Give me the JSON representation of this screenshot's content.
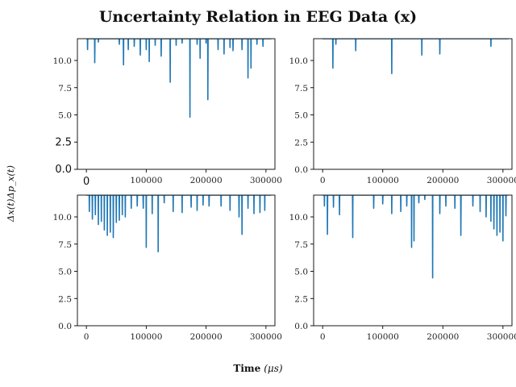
{
  "figure": {
    "title": "Uncertainty Relation in EEG Data (x)",
    "xlabel_bold": "Time",
    "xlabel_unit": "(μs)",
    "ylabel": "Δx(t)Δp_x(t)",
    "line_color": "#1f77b4"
  },
  "chart_data": [
    {
      "type": "line",
      "panel": "top-left",
      "xlim": [
        -15000,
        315000
      ],
      "ylim": [
        0,
        12
      ],
      "xticks": [
        0,
        100000,
        200000,
        300000
      ],
      "yticks": [
        0.0,
        2.5,
        5.0,
        7.5,
        10.0
      ],
      "baseline": 12,
      "dips": [
        [
          2000,
          11.0
        ],
        [
          14000,
          9.8
        ],
        [
          20000,
          11.7
        ],
        [
          55000,
          11.5
        ],
        [
          62000,
          9.6
        ],
        [
          70000,
          11.0
        ],
        [
          80000,
          11.3
        ],
        [
          90000,
          10.5
        ],
        [
          100000,
          11.0
        ],
        [
          105000,
          9.9
        ],
        [
          115000,
          11.4
        ],
        [
          125000,
          10.4
        ],
        [
          140000,
          8.0
        ],
        [
          150000,
          11.4
        ],
        [
          160000,
          11.6
        ],
        [
          173000,
          4.8
        ],
        [
          185000,
          11.5
        ],
        [
          190000,
          10.2
        ],
        [
          200000,
          11.6
        ],
        [
          203000,
          6.4
        ],
        [
          220000,
          11.0
        ],
        [
          230000,
          10.6
        ],
        [
          240000,
          11.2
        ],
        [
          245000,
          10.9
        ],
        [
          260000,
          11.0
        ],
        [
          270000,
          8.4
        ],
        [
          275000,
          9.3
        ],
        [
          285000,
          11.5
        ],
        [
          295000,
          11.3
        ]
      ]
    },
    {
      "type": "line",
      "panel": "top-right",
      "xlim": [
        -15000,
        315000
      ],
      "ylim": [
        0,
        12
      ],
      "xticks": [
        0,
        100000,
        200000,
        300000
      ],
      "yticks": [
        0.0,
        2.5,
        5.0,
        7.5,
        10.0
      ],
      "baseline": 12,
      "dips": [
        [
          17000,
          9.3
        ],
        [
          22000,
          11.5
        ],
        [
          55000,
          10.9
        ],
        [
          115000,
          8.8
        ],
        [
          165000,
          10.5
        ],
        [
          195000,
          10.6
        ],
        [
          280000,
          11.3
        ]
      ]
    },
    {
      "type": "line",
      "panel": "bottom-left",
      "xlim": [
        -15000,
        315000
      ],
      "ylim": [
        0,
        12
      ],
      "xticks": [
        0,
        100000,
        200000,
        300000
      ],
      "yticks": [
        0.0,
        2.5,
        5.0,
        7.5,
        10.0
      ],
      "baseline": 12,
      "dips": [
        [
          5000,
          10.5
        ],
        [
          10000,
          9.8
        ],
        [
          15000,
          10.2
        ],
        [
          20000,
          9.3
        ],
        [
          25000,
          9.6
        ],
        [
          30000,
          8.8
        ],
        [
          35000,
          8.3
        ],
        [
          40000,
          8.6
        ],
        [
          45000,
          8.1
        ],
        [
          50000,
          9.5
        ],
        [
          55000,
          9.7
        ],
        [
          60000,
          10.2
        ],
        [
          65000,
          10.0
        ],
        [
          75000,
          10.8
        ],
        [
          85000,
          11.0
        ],
        [
          95000,
          10.8
        ],
        [
          100000,
          7.2
        ],
        [
          110000,
          10.3
        ],
        [
          120000,
          6.8
        ],
        [
          130000,
          11.3
        ],
        [
          145000,
          10.5
        ],
        [
          160000,
          10.4
        ],
        [
          175000,
          10.9
        ],
        [
          185000,
          10.6
        ],
        [
          195000,
          11.1
        ],
        [
          205000,
          11.0
        ],
        [
          225000,
          11.0
        ],
        [
          240000,
          10.6
        ],
        [
          255000,
          10.0
        ],
        [
          260000,
          8.4
        ],
        [
          270000,
          10.8
        ],
        [
          280000,
          10.3
        ],
        [
          290000,
          10.4
        ],
        [
          298000,
          10.6
        ]
      ]
    },
    {
      "type": "line",
      "panel": "bottom-right",
      "xlim": [
        -15000,
        315000
      ],
      "ylim": [
        0,
        12
      ],
      "xticks": [
        0,
        100000,
        200000,
        300000
      ],
      "yticks": [
        0.0,
        2.5,
        5.0,
        7.5,
        10.0
      ],
      "baseline": 12,
      "dips": [
        [
          3000,
          11.0
        ],
        [
          8000,
          8.4
        ],
        [
          18000,
          10.9
        ],
        [
          28000,
          10.2
        ],
        [
          50000,
          8.1
        ],
        [
          85000,
          10.8
        ],
        [
          100000,
          11.2
        ],
        [
          115000,
          10.3
        ],
        [
          130000,
          10.5
        ],
        [
          140000,
          11.0
        ],
        [
          148000,
          7.2
        ],
        [
          152000,
          7.8
        ],
        [
          160000,
          11.3
        ],
        [
          170000,
          11.6
        ],
        [
          183000,
          4.4
        ],
        [
          195000,
          10.3
        ],
        [
          205000,
          11.0
        ],
        [
          220000,
          10.8
        ],
        [
          230000,
          8.3
        ],
        [
          250000,
          11.0
        ],
        [
          262000,
          10.5
        ],
        [
          272000,
          10.0
        ],
        [
          280000,
          9.6
        ],
        [
          285000,
          8.9
        ],
        [
          290000,
          8.3
        ],
        [
          295000,
          8.6
        ],
        [
          300000,
          7.8
        ],
        [
          305000,
          10.1
        ]
      ]
    }
  ]
}
